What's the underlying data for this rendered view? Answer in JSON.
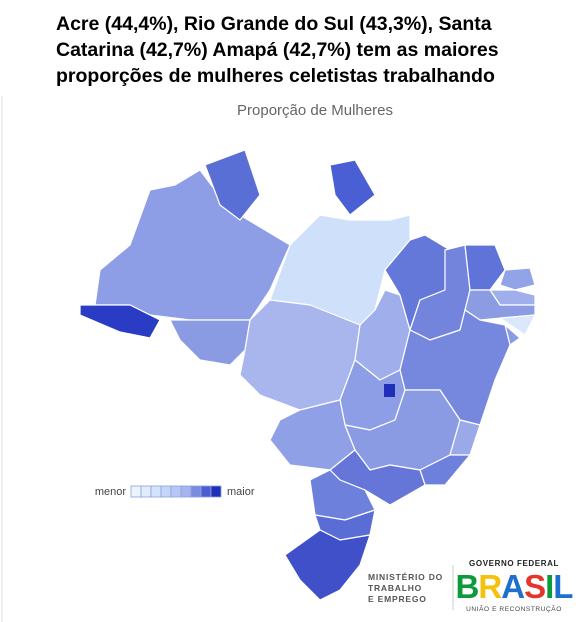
{
  "header": {
    "title_lines": [
      "Acre (44,4%), Rio Grande do Sul (43,3%), Santa",
      "Catarina (42,7%) Amapá (42,7%) tem as maiores",
      "proporções de mulheres celetistas trabalhando"
    ]
  },
  "map": {
    "title": "Proporção de Mulheres",
    "legend": {
      "low": "menor",
      "high": "maior"
    }
  },
  "footer": {
    "ministry": [
      "MINISTÉRIO DO",
      "TRABALHO",
      "E EMPREGO"
    ],
    "government": "GOVERNO FEDERAL",
    "brand": "BRASIL",
    "slogan": "UNIÃO E RECONSTRUÇÃO"
  }
}
